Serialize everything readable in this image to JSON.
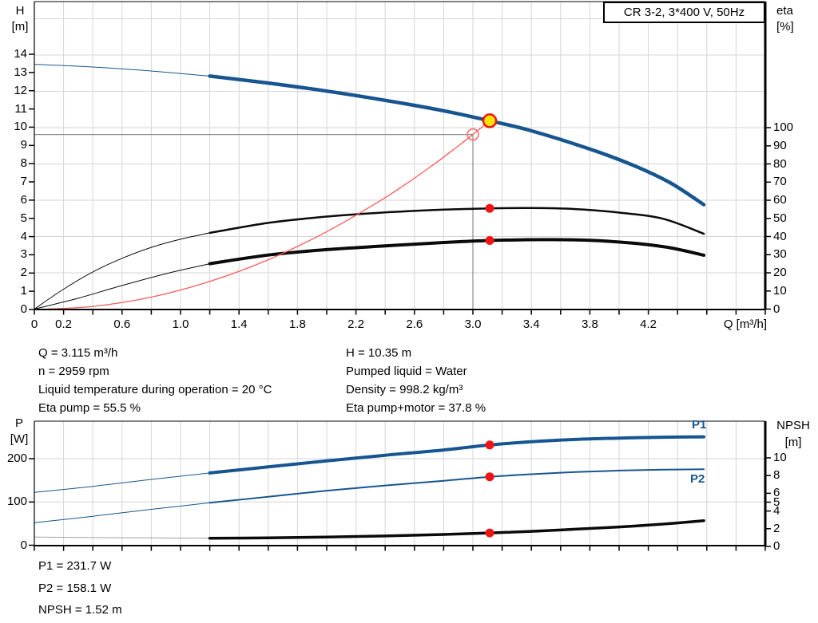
{
  "title_box": "CR 3-2, 3*400 V, 50Hz",
  "colors": {
    "curve_blue": "#175590",
    "curve_black": "#0a0a0a",
    "red_dot": "#f01414",
    "system_red": "#ff5a5a",
    "yellow_point": "#ffe400",
    "crosshair_gray": "#8c8c8c",
    "grid": "#d6d6d6",
    "npsh_thin_gray": "#a0a0a0"
  },
  "chart_data": [
    {
      "id": "head-efficiency-chart",
      "type": "line",
      "x_axis": {
        "label": "Q [m³/h]",
        "min": 0,
        "max": 5,
        "tick_step": 0.2,
        "labeled_ticks": [
          "0",
          "0.2",
          "0.6",
          "1.0",
          "1.4",
          "1.8",
          "2.2",
          "2.6",
          "3.0",
          "3.4",
          "3.8",
          "4.2"
        ]
      },
      "y_left": {
        "label_line1": "H",
        "label_line2": "[m]",
        "ticks": [
          0,
          1,
          2,
          3,
          4,
          5,
          6,
          7,
          8,
          9,
          10,
          11,
          12,
          13,
          14
        ]
      },
      "y_right": {
        "label_line1": "eta",
        "label_line2": "[%]",
        "ticks": [
          0,
          10,
          20,
          30,
          40,
          50,
          60,
          70,
          80,
          90,
          100
        ]
      },
      "series": [
        {
          "name": "qh-curve-thin",
          "axis": "left",
          "color": "#175590",
          "width": 1,
          "points": [
            [
              0,
              13.45
            ],
            [
              0.4,
              13.3
            ],
            [
              0.8,
              13.08
            ],
            [
              1.2,
              12.8
            ]
          ]
        },
        {
          "name": "qh-curve",
          "axis": "left",
          "color": "#175590",
          "width": 4.5,
          "points": [
            [
              1.2,
              12.8
            ],
            [
              1.6,
              12.42
            ],
            [
              2.0,
              11.98
            ],
            [
              2.4,
              11.47
            ],
            [
              2.8,
              10.9
            ],
            [
              3.115,
              10.35
            ],
            [
              3.4,
              9.8
            ],
            [
              3.8,
              8.8
            ],
            [
              4.1,
              7.9
            ],
            [
              4.35,
              6.95
            ],
            [
              4.58,
              5.75
            ]
          ]
        },
        {
          "name": "eta-pump-curve-thin",
          "axis": "right",
          "color": "#0a0a0a",
          "width": 1,
          "points": [
            [
              0,
              0
            ],
            [
              0.2,
              11
            ],
            [
              0.4,
              20.5
            ],
            [
              0.6,
              28
            ],
            [
              0.8,
              34
            ],
            [
              1.0,
              38.5
            ],
            [
              1.2,
              42
            ]
          ]
        },
        {
          "name": "eta-pump-curve",
          "axis": "right",
          "color": "#0a0a0a",
          "width": 2.5,
          "points": [
            [
              1.2,
              42
            ],
            [
              1.6,
              47.5
            ],
            [
              2.0,
              51
            ],
            [
              2.4,
              53.3
            ],
            [
              2.8,
              54.8
            ],
            [
              3.115,
              55.5
            ],
            [
              3.4,
              55.7
            ],
            [
              3.7,
              55.1
            ],
            [
              4.0,
              53.2
            ],
            [
              4.3,
              49.8
            ],
            [
              4.58,
              41.5
            ]
          ]
        },
        {
          "name": "eta-pump-motor-curve-thin",
          "axis": "right",
          "color": "#0a0a0a",
          "width": 1,
          "points": [
            [
              0,
              0
            ],
            [
              0.3,
              6
            ],
            [
              0.6,
              13
            ],
            [
              0.9,
              19.5
            ],
            [
              1.2,
              25
            ]
          ]
        },
        {
          "name": "eta-pump-motor-curve",
          "axis": "right",
          "color": "#0a0a0a",
          "width": 4,
          "points": [
            [
              1.2,
              25
            ],
            [
              1.6,
              29.8
            ],
            [
              2.0,
              32.8
            ],
            [
              2.4,
              34.8
            ],
            [
              2.8,
              36.7
            ],
            [
              3.115,
              37.8
            ],
            [
              3.5,
              38.3
            ],
            [
              3.8,
              37.9
            ],
            [
              4.1,
              36.3
            ],
            [
              4.35,
              33.8
            ],
            [
              4.58,
              29.7
            ]
          ]
        },
        {
          "name": "system-curve",
          "axis": "left",
          "color": "#ff5a5a",
          "width": 1.3,
          "points": [
            [
              0,
              0
            ],
            [
              0.4,
              0.17
            ],
            [
              0.8,
              0.68
            ],
            [
              1.2,
              1.54
            ],
            [
              1.6,
              2.73
            ],
            [
              2.0,
              4.27
            ],
            [
              2.4,
              6.14
            ],
            [
              2.7,
              7.77
            ],
            [
              2.9,
              8.97
            ],
            [
              3.0,
              9.6
            ],
            [
              3.115,
              10.35
            ]
          ]
        }
      ],
      "crosshair": {
        "q": 3.0,
        "h": 9.6
      },
      "markers": [
        {
          "name": "requested-duty-point",
          "type": "open-circle",
          "axis": "left",
          "q": 3.0,
          "value": 9.6,
          "stroke": "#ff5a5a",
          "r": 7
        },
        {
          "name": "eta-pump-point",
          "type": "dot",
          "axis": "right",
          "q": 3.115,
          "value": 55.5,
          "fill": "#f01414",
          "r": 5.5
        },
        {
          "name": "eta-pump-motor-point",
          "type": "dot",
          "axis": "right",
          "q": 3.115,
          "value": 37.8,
          "fill": "#f01414",
          "r": 5.5
        },
        {
          "name": "operating-point",
          "type": "operating",
          "axis": "left",
          "q": 3.115,
          "value": 10.35,
          "fill": "#ffe400",
          "stroke": "#f01414",
          "r": 8
        }
      ]
    },
    {
      "id": "power-npsh-chart",
      "type": "line",
      "x_axis": {
        "label": "",
        "min": 0,
        "max": 5,
        "tick_step": 0.2,
        "labeled_ticks": []
      },
      "y_left": {
        "label_line1": "P",
        "label_line2": "[W]",
        "ticks": [
          0,
          100,
          200
        ]
      },
      "y_right": {
        "label_line1": "NPSH",
        "label_line2": "[m]",
        "ticks": [
          0,
          2,
          4,
          5,
          6,
          8,
          10
        ]
      },
      "series": [
        {
          "name": "p1-curve-thin",
          "axis": "left",
          "color": "#175590",
          "width": 1,
          "points": [
            [
              0,
              122
            ],
            [
              0.4,
              136
            ],
            [
              0.8,
              152
            ],
            [
              1.2,
              167
            ]
          ]
        },
        {
          "name": "p1-curve",
          "axis": "left",
          "color": "#175590",
          "width": 4,
          "points": [
            [
              1.2,
              167
            ],
            [
              1.6,
              181
            ],
            [
              2.0,
              195
            ],
            [
              2.4,
              208
            ],
            [
              2.8,
              220
            ],
            [
              3.115,
              231.7
            ],
            [
              3.4,
              239
            ],
            [
              3.7,
              244.5
            ],
            [
              4.0,
              247.5
            ],
            [
              4.3,
              249.5
            ],
            [
              4.58,
              250.5
            ]
          ]
        },
        {
          "name": "p2-curve-thin",
          "axis": "left",
          "color": "#175590",
          "width": 1,
          "points": [
            [
              0,
              52
            ],
            [
              0.4,
              67
            ],
            [
              0.8,
              83
            ],
            [
              1.2,
              98
            ]
          ]
        },
        {
          "name": "p2-curve",
          "axis": "left",
          "color": "#175590",
          "width": 2,
          "points": [
            [
              1.2,
              98
            ],
            [
              1.6,
              112
            ],
            [
              2.0,
              126
            ],
            [
              2.4,
              138
            ],
            [
              2.8,
              149
            ],
            [
              3.115,
              158.1
            ],
            [
              3.4,
              164
            ],
            [
              3.7,
              169
            ],
            [
              4.0,
              172.5
            ],
            [
              4.3,
              174.5
            ],
            [
              4.58,
              175.5
            ]
          ]
        },
        {
          "name": "npsh-curve-thin",
          "axis": "right",
          "color": "#a0a0a0",
          "width": 1,
          "points": [
            [
              0,
              1.05
            ],
            [
              0.4,
              1.0
            ],
            [
              0.8,
              0.96
            ],
            [
              1.2,
              0.93
            ]
          ]
        },
        {
          "name": "npsh-curve",
          "axis": "right",
          "color": "#0a0a0a",
          "width": 3.5,
          "points": [
            [
              1.2,
              0.93
            ],
            [
              1.6,
              0.97
            ],
            [
              2.0,
              1.05
            ],
            [
              2.4,
              1.18
            ],
            [
              2.8,
              1.35
            ],
            [
              3.115,
              1.52
            ],
            [
              3.4,
              1.7
            ],
            [
              3.7,
              1.95
            ],
            [
              4.0,
              2.2
            ],
            [
              4.3,
              2.52
            ],
            [
              4.58,
              2.9
            ]
          ]
        }
      ],
      "markers": [
        {
          "name": "p1-point",
          "type": "dot",
          "axis": "left",
          "q": 3.115,
          "value": 231.7,
          "fill": "#f01414",
          "r": 5.5
        },
        {
          "name": "p2-point",
          "type": "dot",
          "axis": "left",
          "q": 3.115,
          "value": 158.1,
          "fill": "#f01414",
          "r": 5.5
        },
        {
          "name": "npsh-point",
          "type": "dot",
          "axis": "right",
          "q": 3.115,
          "value": 1.52,
          "fill": "#f01414",
          "r": 5.5
        }
      ]
    }
  ],
  "curve_labels": {
    "p1": "P1",
    "p2": "P2"
  },
  "annotations": {
    "left": [
      "Q = 3.115 m³/h",
      "n = 2959 rpm",
      "Liquid temperature during operation = 20 °C",
      "Eta pump = 55.5 %"
    ],
    "right": [
      "H = 10.35 m",
      "Pumped liquid = Water",
      "Density = 998.2 kg/m³",
      "Eta pump+motor = 37.8 %"
    ],
    "bottom": [
      "P1 = 231.7 W",
      "P2 = 158.1 W",
      "NPSH = 1.52 m"
    ]
  }
}
